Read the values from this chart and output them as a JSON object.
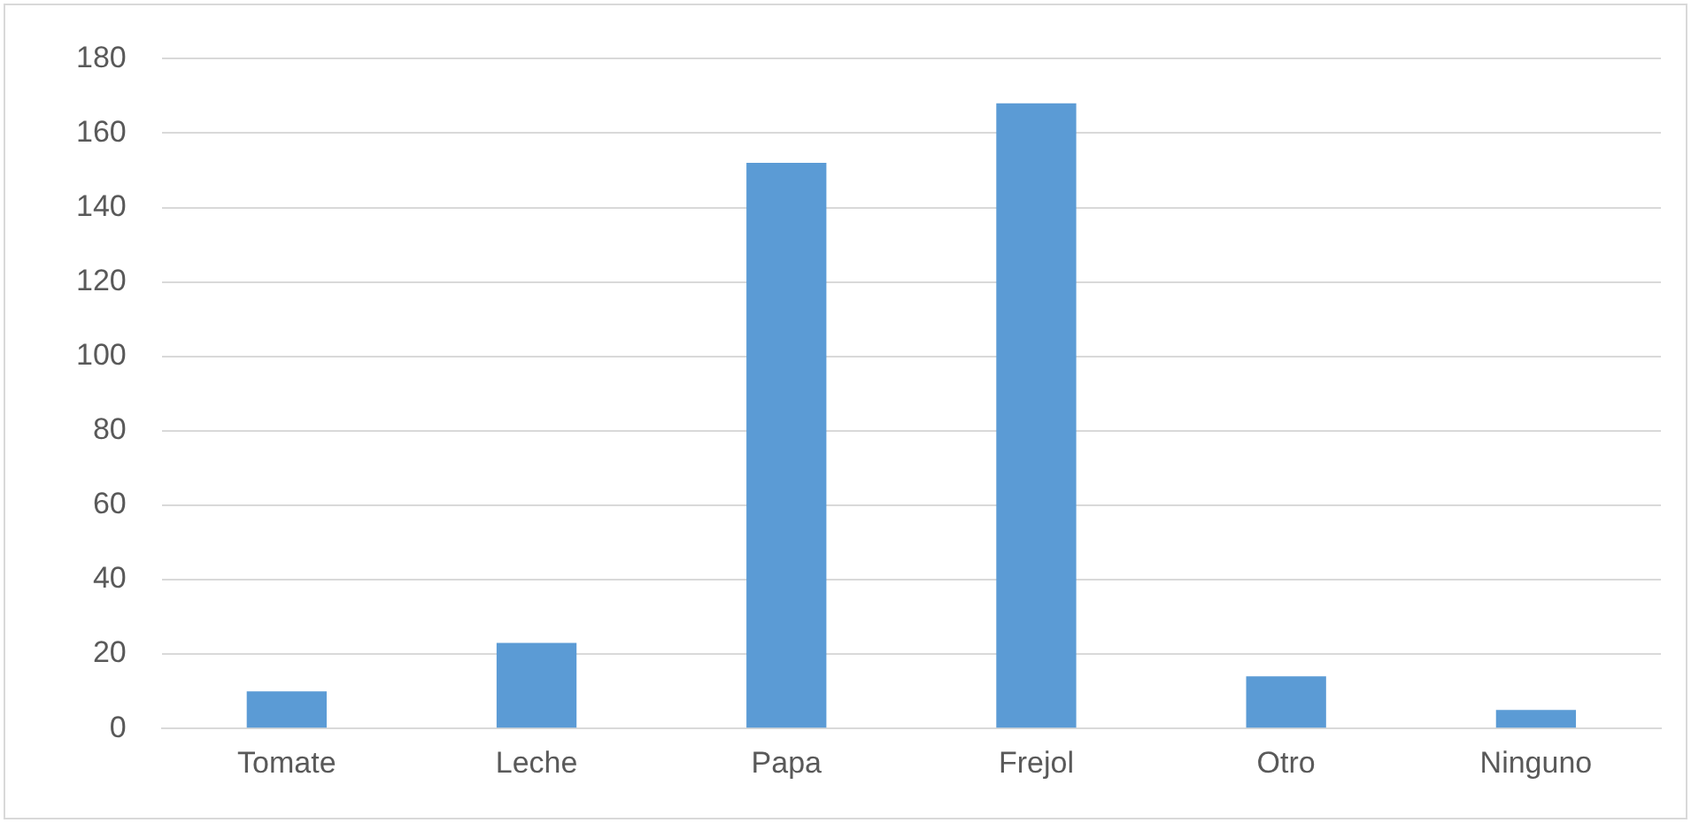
{
  "chart_data": {
    "type": "bar",
    "categories": [
      "Tomate",
      "Leche",
      "Papa",
      "Frejol",
      "Otro",
      "Ninguno"
    ],
    "values": [
      10,
      23,
      152,
      168,
      14,
      5
    ],
    "color": "#5b9bd5",
    "ylim": [
      0,
      180
    ],
    "yticks": [
      0,
      20,
      40,
      60,
      80,
      100,
      120,
      140,
      160,
      180
    ],
    "grid": "y",
    "legend": false
  }
}
